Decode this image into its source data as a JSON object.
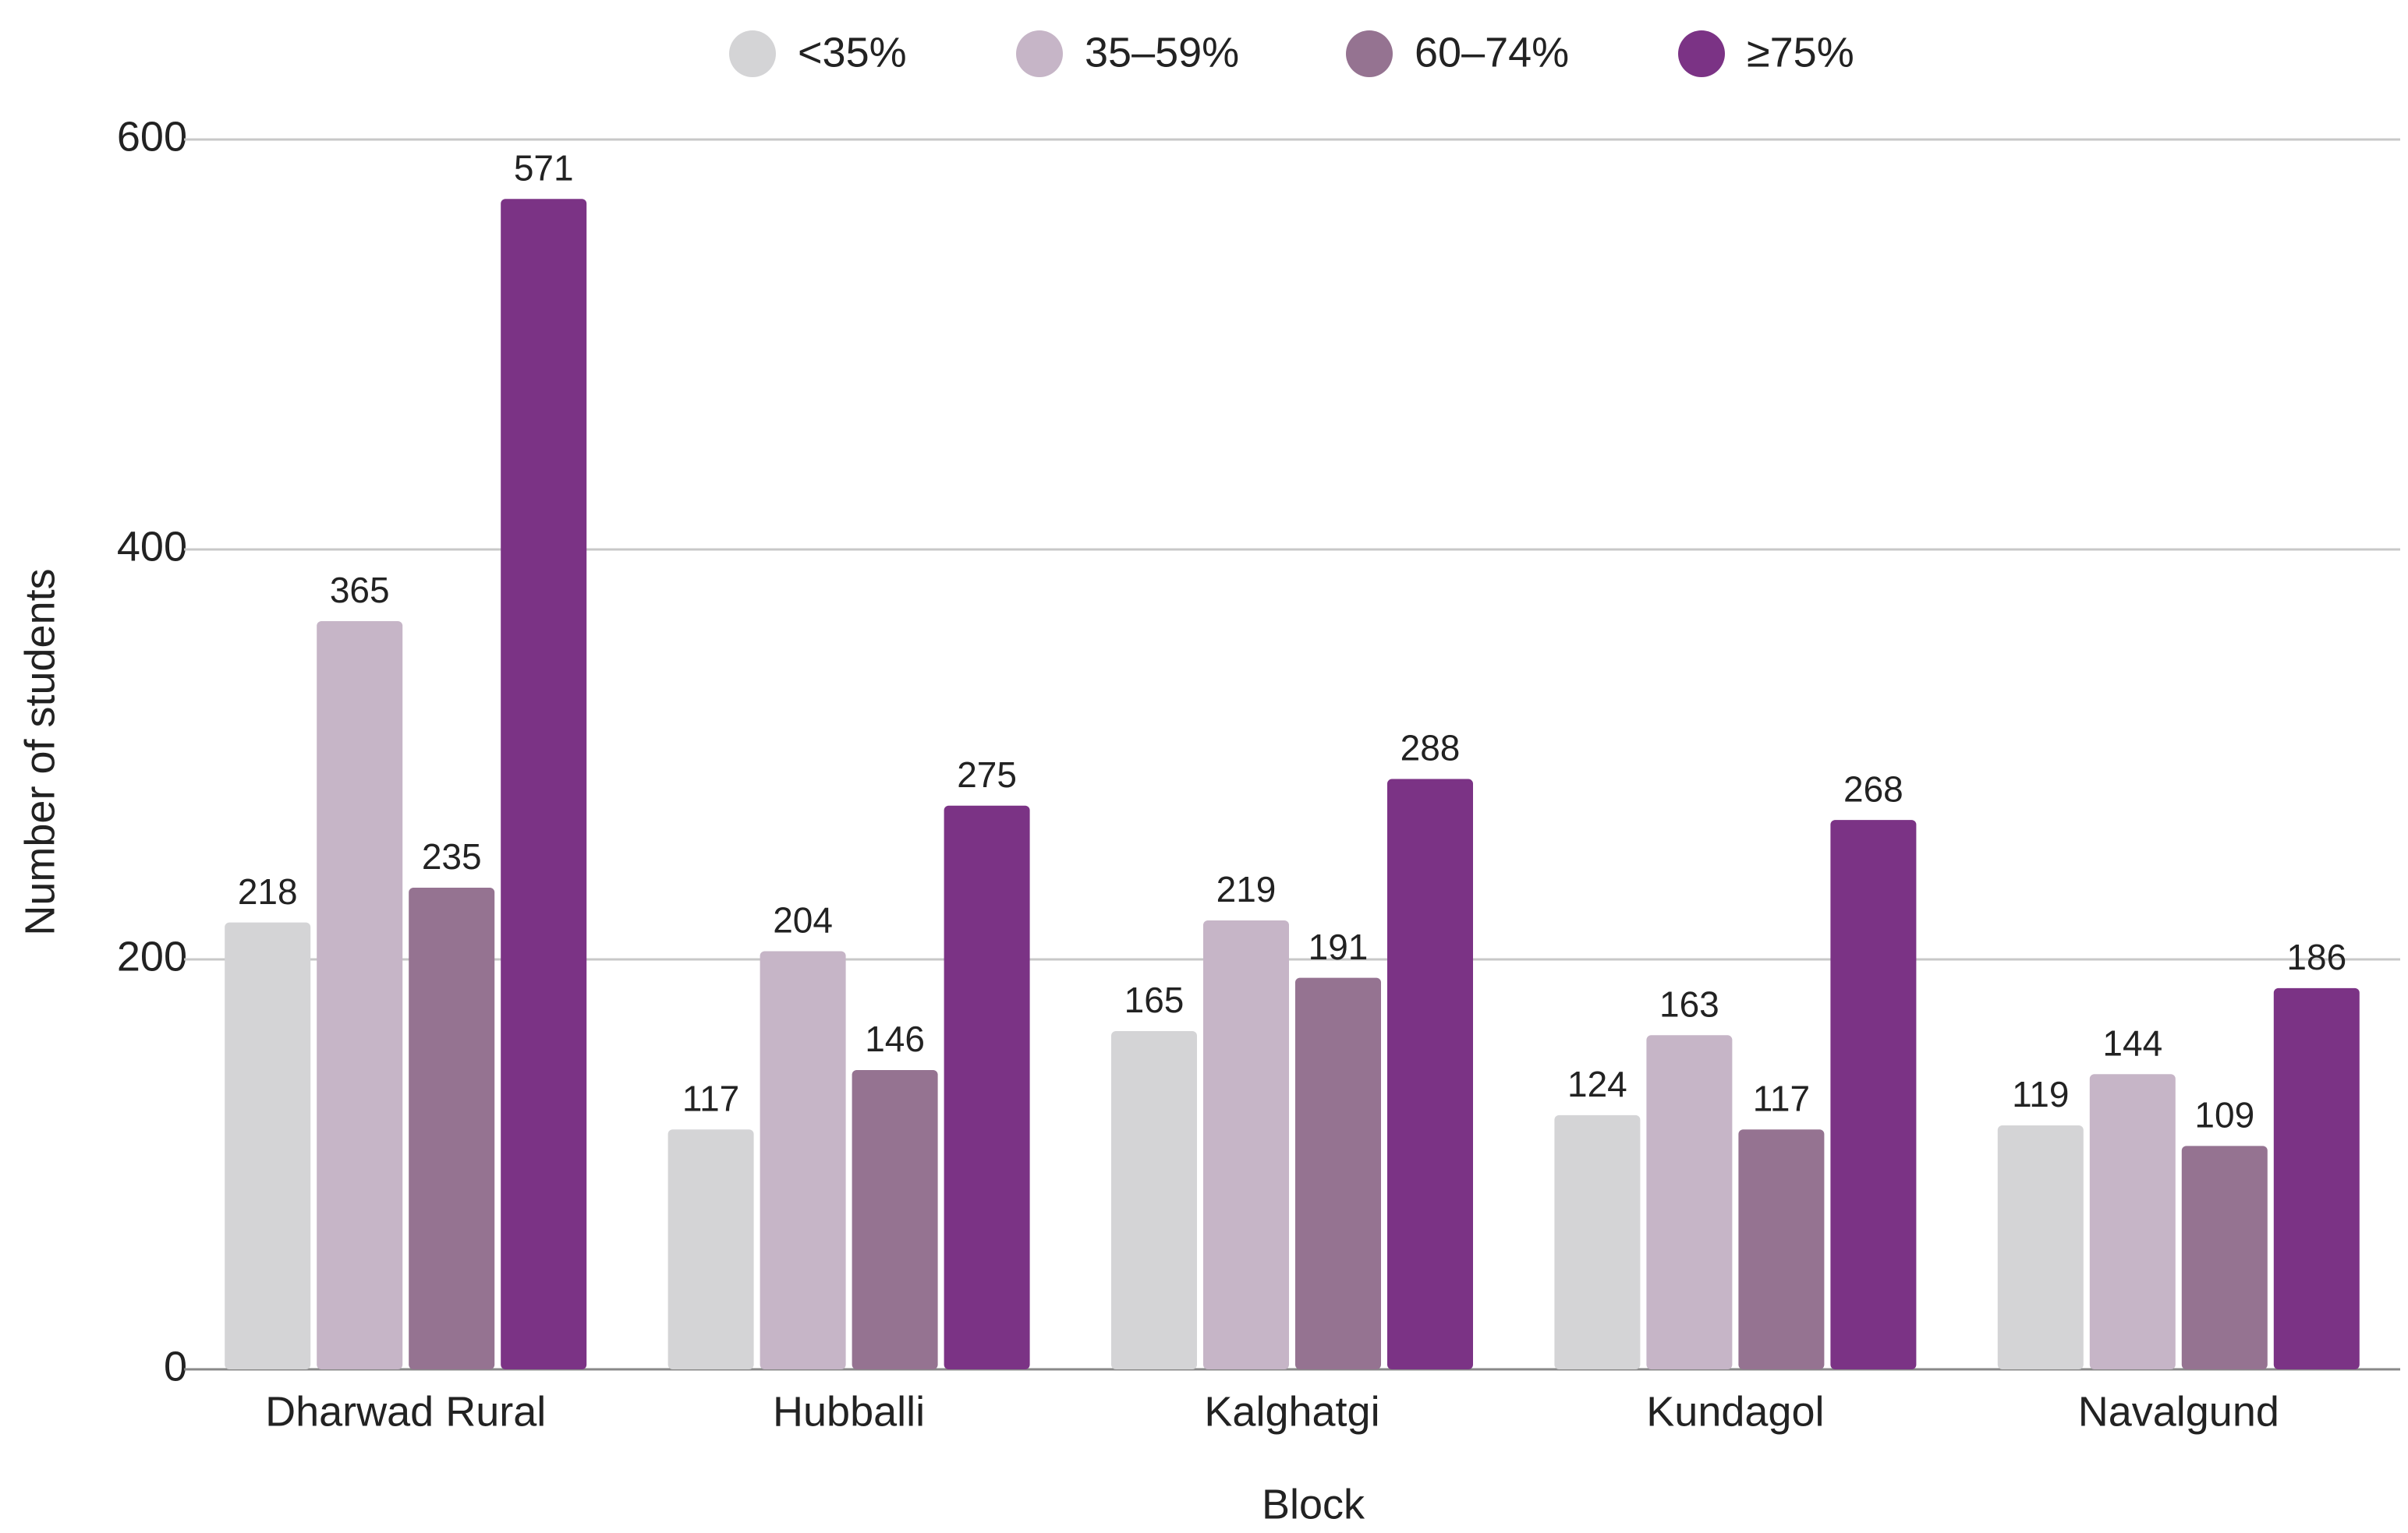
{
  "chart_data": {
    "type": "bar",
    "x_label": "Block",
    "y_label": "Number of students",
    "categories": [
      "Dharwad Rural",
      "Hubballi",
      "Kalghatgi",
      "Kundagol",
      "Navalgund"
    ],
    "series": [
      {
        "name": "<35%",
        "color": "#d4d4d6",
        "values": [
          218,
          117,
          165,
          124,
          119
        ]
      },
      {
        "name": "35–59%",
        "color": "#c6b5c7",
        "values": [
          365,
          204,
          219,
          163,
          144
        ]
      },
      {
        "name": "60–74%",
        "color": "#957391",
        "values": [
          235,
          146,
          191,
          117,
          109
        ]
      },
      {
        "name": "≥75%",
        "color": "#7b3385",
        "values": [
          571,
          275,
          288,
          268,
          186
        ]
      }
    ],
    "ylim": [
      0,
      600
    ],
    "yticks": [
      0,
      200,
      400,
      600
    ],
    "grid": true,
    "legend": "top"
  }
}
